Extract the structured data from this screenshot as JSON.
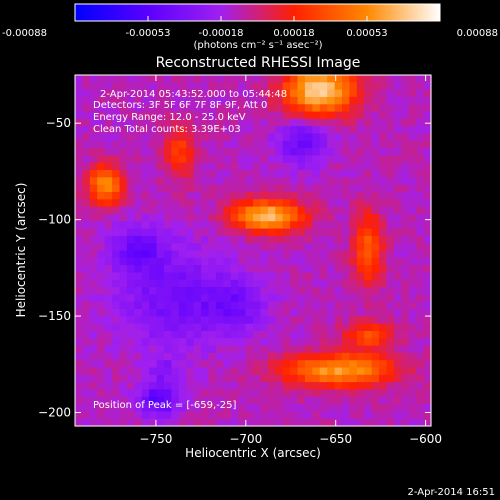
{
  "colorbar": {
    "tick_labels": [
      "-0.00088",
      "-0.00053",
      "-0.00018",
      "0.00018",
      "0.00053",
      "0.00088"
    ],
    "unit_label": "(photons cm⁻² s⁻¹ asec⁻²)",
    "colors": [
      "#0000ff",
      "#5a00ff",
      "#a020f0",
      "#ff2000",
      "#ff8800",
      "#ffffff"
    ]
  },
  "title": "Reconstructed RHESSI Image",
  "annotations": {
    "time_range": "2-Apr-2014 05:43:52.000 to 05:44:48",
    "detectors": "Detectors: 3F 5F 6F 7F 8F 9F, Att 0",
    "energy_range": "Energy Range: 12.0 - 25.0 keV",
    "clean_counts": "Clean     Total counts: 3.39E+03",
    "peak_position": "Position of Peak = [-659,-25]"
  },
  "footer_timestamp": "2-Apr-2014 16:51",
  "chart_data": {
    "type": "heatmap",
    "title": "Reconstructed RHESSI Image",
    "xlabel": "Heliocentric X (arcsec)",
    "ylabel": "Heliocentric Y (arcsec)",
    "xlim": [
      -795,
      -597
    ],
    "ylim": [
      -207,
      -25
    ],
    "x_ticks": [
      -750,
      -700,
      -650,
      -600
    ],
    "y_ticks": [
      -50,
      -100,
      -150,
      -200
    ],
    "x_tick_labels": [
      "−750",
      "−700",
      "−650",
      "−600"
    ],
    "y_tick_labels": [
      "−50",
      "−100",
      "−150",
      "−200"
    ],
    "value_range": [
      -0.00088,
      0.00088
    ],
    "peak": [
      -659,
      -25
    ],
    "sources": [
      {
        "x": -659,
        "y": -33,
        "sx": 14,
        "sy": 9,
        "amp": 0.00088
      },
      {
        "x": -737,
        "y": -65,
        "sx": 6,
        "sy": 10,
        "amp": 0.00035
      },
      {
        "x": -778,
        "y": -82,
        "sx": 7,
        "sy": 7,
        "amp": 0.00065
      },
      {
        "x": -688,
        "y": -98,
        "sx": 14,
        "sy": 6,
        "amp": 0.00078
      },
      {
        "x": -632,
        "y": -115,
        "sx": 6,
        "sy": 14,
        "amp": 0.00045
      },
      {
        "x": -648,
        "y": -178,
        "sx": 22,
        "sy": 6,
        "amp": 0.0007
      },
      {
        "x": -632,
        "y": -160,
        "sx": 10,
        "sy": 5,
        "amp": 0.0004
      },
      {
        "x": -745,
        "y": -178,
        "sx": 6,
        "sy": 4,
        "amp": -0.0002
      },
      {
        "x": -740,
        "y": -140,
        "sx": 22,
        "sy": 18,
        "amp": -0.0003
      },
      {
        "x": -668,
        "y": -60,
        "sx": 10,
        "sy": 8,
        "amp": -0.00035
      },
      {
        "x": -760,
        "y": -115,
        "sx": 10,
        "sy": 8,
        "amp": -0.0003
      },
      {
        "x": -748,
        "y": -193,
        "sx": 8,
        "sy": 6,
        "amp": -0.00045
      },
      {
        "x": -705,
        "y": -145,
        "sx": 12,
        "sy": 10,
        "amp": -0.00025
      }
    ]
  }
}
